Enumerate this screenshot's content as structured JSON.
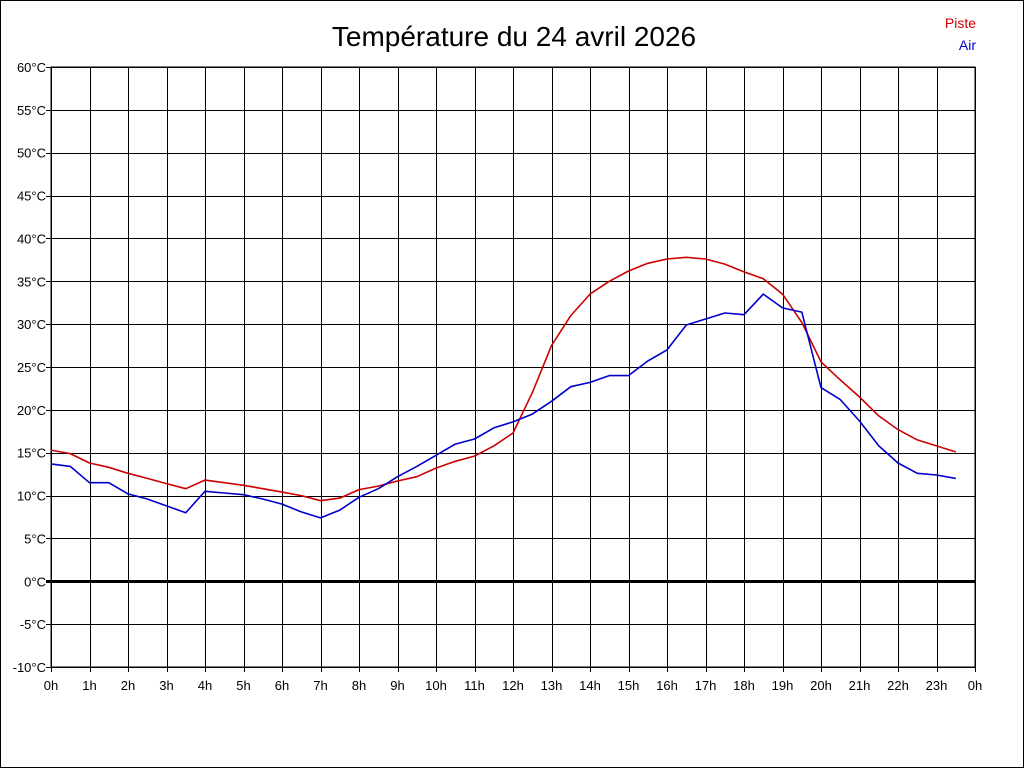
{
  "chart_data": {
    "type": "line",
    "title": "Température du 24 avril 2026",
    "xlabel": "",
    "ylabel": "",
    "x_tick_labels": [
      "0h",
      "1h",
      "2h",
      "3h",
      "4h",
      "5h",
      "6h",
      "7h",
      "8h",
      "9h",
      "10h",
      "11h",
      "12h",
      "13h",
      "14h",
      "15h",
      "16h",
      "17h",
      "18h",
      "19h",
      "20h",
      "21h",
      "22h",
      "23h",
      "0h"
    ],
    "y_tick_labels": [
      "-10°C",
      "-5°C",
      "0°C",
      "5°C",
      "10°C",
      "15°C",
      "20°C",
      "25°C",
      "30°C",
      "35°C",
      "40°C",
      "45°C",
      "50°C",
      "55°C",
      "60°C"
    ],
    "xlim": [
      0,
      24
    ],
    "ylim": [
      -10,
      60
    ],
    "y_step": 5,
    "grid": true,
    "zero_line": true,
    "legend_position": "top-right",
    "x": [
      0,
      0.5,
      1,
      1.5,
      2,
      2.5,
      3,
      3.5,
      4,
      4.5,
      5,
      5.5,
      6,
      6.5,
      7,
      7.5,
      8,
      8.5,
      9,
      9.5,
      10,
      10.5,
      11,
      11.5,
      12,
      12.5,
      13,
      13.5,
      14,
      14.5,
      15,
      15.5,
      16,
      16.5,
      17,
      17.5,
      18,
      18.5,
      19,
      19.5,
      20,
      20.5,
      21,
      21.5,
      22,
      22.5,
      23,
      23.5
    ],
    "series": [
      {
        "name": "Piste",
        "color": "#cc0000",
        "values": [
          15.3,
          14.9,
          13.8,
          13.3,
          12.6,
          12.0,
          11.4,
          10.8,
          11.8,
          11.5,
          11.2,
          10.8,
          10.4,
          10.0,
          9.4,
          9.7,
          10.7,
          11.1,
          11.7,
          12.2,
          13.2,
          14.0,
          14.6,
          15.8,
          17.3,
          22.0,
          27.5,
          31.0,
          33.5,
          35.0,
          36.2,
          37.1,
          37.6,
          37.8,
          37.6,
          37.0,
          36.1,
          35.3,
          33.5,
          30.2,
          25.6,
          23.5,
          21.5,
          19.3,
          17.7,
          16.5,
          15.8,
          15.1
        ]
      },
      {
        "name": "Air",
        "color": "#0000cc",
        "values": [
          13.7,
          13.4,
          11.5,
          11.5,
          10.2,
          9.6,
          8.8,
          8.0,
          10.5,
          10.3,
          10.1,
          9.6,
          9.0,
          8.1,
          7.4,
          8.3,
          9.8,
          10.8,
          12.2,
          13.4,
          14.7,
          16.0,
          16.6,
          17.9,
          18.6,
          19.5,
          21.0,
          22.7,
          23.2,
          24.0,
          24.0,
          25.7,
          27.0,
          29.9,
          30.6,
          31.3,
          31.1,
          33.5,
          31.9,
          31.4,
          22.6,
          21.2,
          18.7,
          15.8,
          13.8,
          12.6,
          12.4,
          12.0
        ]
      }
    ]
  }
}
